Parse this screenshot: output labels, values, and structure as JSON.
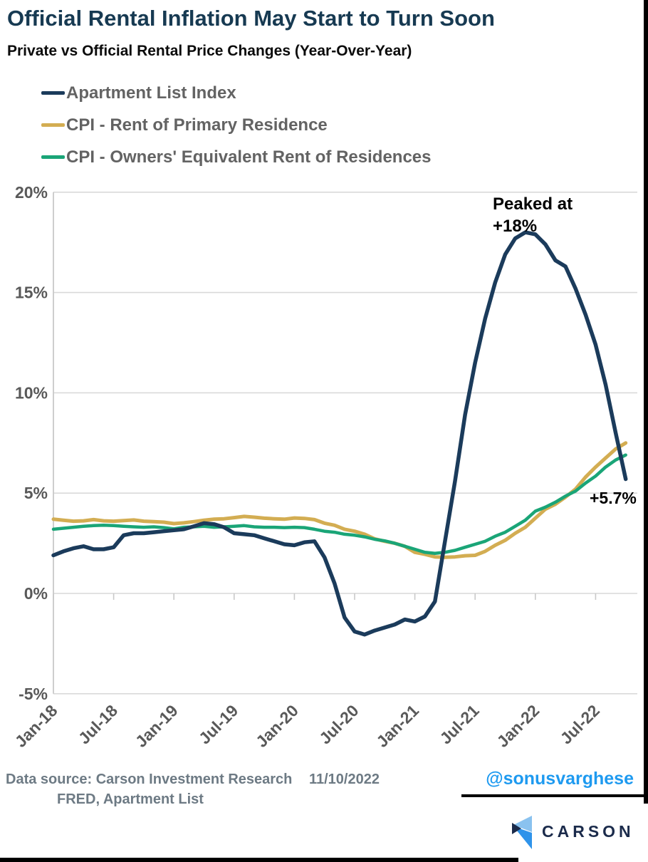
{
  "header": {
    "title": "Official Rental Inflation May Start to Turn Soon",
    "subtitle": "Private vs Official Rental Price Changes (Year-Over-Year)"
  },
  "legend": [
    {
      "label": "Apartment List Index",
      "color": "#1b3b5b"
    },
    {
      "label": "CPI - Rent of Primary Residence",
      "color": "#d3ad52"
    },
    {
      "label": "CPI - Owners' Equivalent Rent of Residences",
      "color": "#1aa577"
    }
  ],
  "chart_data": {
    "type": "line",
    "title": "Private vs Official Rental Price Changes (Year-Over-Year)",
    "ylim": [
      -5,
      20
    ],
    "grid": "horizontal",
    "legend_position": "top-left",
    "x": [
      "Jan-18",
      "Feb-18",
      "Mar-18",
      "Apr-18",
      "May-18",
      "Jun-18",
      "Jul-18",
      "Aug-18",
      "Sep-18",
      "Oct-18",
      "Nov-18",
      "Dec-18",
      "Jan-19",
      "Feb-19",
      "Mar-19",
      "Apr-19",
      "May-19",
      "Jun-19",
      "Jul-19",
      "Aug-19",
      "Sep-19",
      "Oct-19",
      "Nov-19",
      "Dec-19",
      "Jan-20",
      "Feb-20",
      "Mar-20",
      "Apr-20",
      "May-20",
      "Jun-20",
      "Jul-20",
      "Aug-20",
      "Sep-20",
      "Oct-20",
      "Nov-20",
      "Dec-20",
      "Jan-21",
      "Feb-21",
      "Mar-21",
      "Apr-21",
      "May-21",
      "Jun-21",
      "Jul-21",
      "Aug-21",
      "Sep-21",
      "Oct-21",
      "Nov-21",
      "Dec-21",
      "Jan-22",
      "Feb-22",
      "Mar-22",
      "Apr-22",
      "May-22",
      "Jun-22",
      "Jul-22",
      "Aug-22",
      "Sep-22",
      "Oct-22"
    ],
    "series": [
      {
        "name": "Apartment List Index",
        "color": "#1b3b5b",
        "width": 5.5,
        "z": 3,
        "values": [
          1.9,
          2.1,
          2.25,
          2.35,
          2.2,
          2.2,
          2.3,
          2.9,
          3.0,
          3.0,
          3.05,
          3.1,
          3.15,
          3.2,
          3.35,
          3.5,
          3.45,
          3.3,
          3.0,
          2.95,
          2.9,
          2.75,
          2.6,
          2.45,
          2.4,
          2.55,
          2.6,
          1.8,
          0.5,
          -1.2,
          -1.9,
          -2.05,
          -1.85,
          -1.7,
          -1.55,
          -1.3,
          -1.4,
          -1.15,
          -0.4,
          2.6,
          5.6,
          8.9,
          11.5,
          13.7,
          15.5,
          16.9,
          17.7,
          18.0,
          17.9,
          17.4,
          16.6,
          16.3,
          15.2,
          13.9,
          12.4,
          10.4,
          8.0,
          5.7
        ]
      },
      {
        "name": "CPI - Rent of Primary Residence",
        "color": "#d3ad52",
        "width": 5,
        "z": 1,
        "values": [
          3.7,
          3.65,
          3.6,
          3.62,
          3.68,
          3.62,
          3.6,
          3.63,
          3.66,
          3.6,
          3.58,
          3.55,
          3.48,
          3.52,
          3.58,
          3.65,
          3.7,
          3.72,
          3.78,
          3.84,
          3.8,
          3.75,
          3.72,
          3.7,
          3.76,
          3.74,
          3.68,
          3.5,
          3.4,
          3.2,
          3.1,
          2.95,
          2.72,
          2.6,
          2.5,
          2.35,
          2.05,
          1.95,
          1.82,
          1.8,
          1.82,
          1.88,
          1.9,
          2.1,
          2.4,
          2.65,
          3.0,
          3.3,
          3.75,
          4.2,
          4.45,
          4.8,
          5.2,
          5.8,
          6.3,
          6.75,
          7.2,
          7.5
        ]
      },
      {
        "name": "CPI - Owners' Equivalent Rent of Residences",
        "color": "#1aa577",
        "width": 4.5,
        "z": 2,
        "values": [
          3.2,
          3.25,
          3.3,
          3.35,
          3.38,
          3.4,
          3.38,
          3.35,
          3.32,
          3.3,
          3.32,
          3.28,
          3.22,
          3.3,
          3.32,
          3.35,
          3.3,
          3.32,
          3.35,
          3.38,
          3.32,
          3.3,
          3.3,
          3.28,
          3.3,
          3.28,
          3.2,
          3.1,
          3.05,
          2.95,
          2.9,
          2.82,
          2.7,
          2.62,
          2.5,
          2.35,
          2.2,
          2.05,
          2.0,
          2.05,
          2.15,
          2.3,
          2.45,
          2.6,
          2.85,
          3.05,
          3.35,
          3.65,
          4.1,
          4.3,
          4.55,
          4.85,
          5.1,
          5.5,
          5.85,
          6.3,
          6.65,
          6.9
        ]
      }
    ],
    "yticks": [
      {
        "v": 20,
        "label": "20%"
      },
      {
        "v": 15,
        "label": "15%"
      },
      {
        "v": 10,
        "label": "10%"
      },
      {
        "v": 5,
        "label": "5%"
      },
      {
        "v": 0,
        "label": "0%"
      },
      {
        "v": -5,
        "label": "-5%"
      }
    ],
    "xticks": [
      {
        "i": 0,
        "label": "Jan-18"
      },
      {
        "i": 6,
        "label": "Jul-18"
      },
      {
        "i": 12,
        "label": "Jan-19"
      },
      {
        "i": 18,
        "label": "Jul-19"
      },
      {
        "i": 24,
        "label": "Jan-20"
      },
      {
        "i": 30,
        "label": "Jul-20"
      },
      {
        "i": 36,
        "label": "Jan-21"
      },
      {
        "i": 42,
        "label": "Jul-21"
      },
      {
        "i": 48,
        "label": "Jan-22"
      },
      {
        "i": 54,
        "label": "Jul-22"
      }
    ],
    "annotations": {
      "peak_line1": "Peaked at",
      "peak_line2": "+18%",
      "end_value": "+5.7%"
    }
  },
  "footer": {
    "source_label": "Data source:",
    "source_value": "Carson Investment Research",
    "date": "11/10/2022",
    "source_line2": "FRED, Apartment List",
    "handle": "@sonusvarghese"
  },
  "branding": {
    "logo_text": "CARSON",
    "logo_colors": {
      "light_blue": "#8ac2ef",
      "blue": "#2f93ea",
      "navy": "#1b2b4b"
    }
  }
}
